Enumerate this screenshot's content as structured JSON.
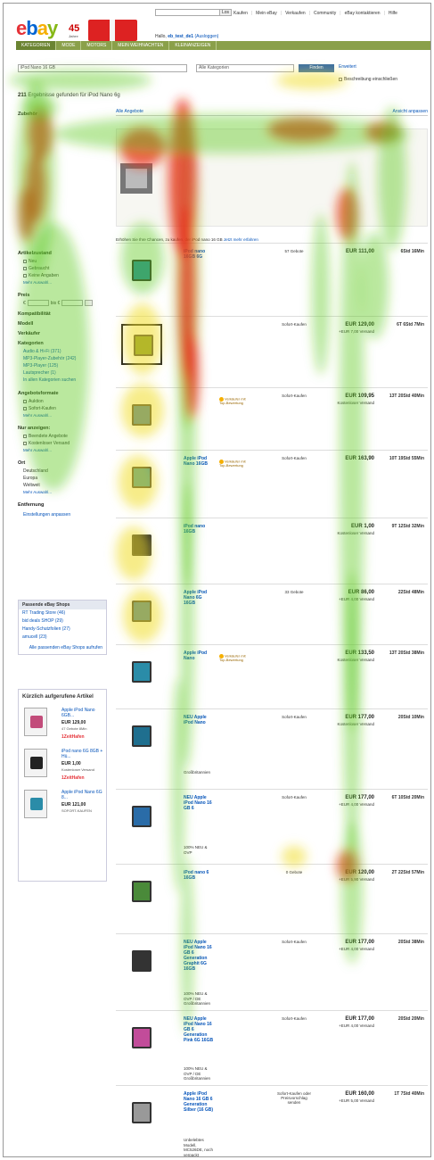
{
  "header": {
    "logo": {
      "e": "e",
      "b": "b",
      "a": "a",
      "y": "y"
    },
    "anniversary": "45",
    "anniversary_sub": "Jahre",
    "search_button": "Los",
    "top_links": [
      "Kaufen",
      "Mein eBay",
      "Verkaufen",
      "Community",
      "eBay kontaktieren",
      "Hilfe"
    ],
    "greeting_prefix": "Hallo,",
    "user": "eb_test_de1",
    "logout": "(Ausloggen)"
  },
  "nav_tabs": [
    "Kategorien",
    "Mode",
    "Motors",
    "Mein Weihnachten",
    "Kleinanzeigen"
  ],
  "search": {
    "query": "iPod Nano 16 GB",
    "category": "Alle Kategorien",
    "button": "Finden",
    "advanced": "Erweitert",
    "include_description": "Beschreibung einschließen"
  },
  "results_count": {
    "num": "211",
    "text": "Ergebnisse gefunden für iPod Nano 6g"
  },
  "results_header": {
    "left": "Alle Angebote",
    "right": "Ansicht anpassen"
  },
  "sidebar": {
    "category_title": "Zubehör",
    "condition_title": "Artikelzustand",
    "condition_items": [
      "Neu",
      "Gebraucht",
      "Keine Angaben"
    ],
    "more": "Mehr Auswahl...",
    "price_title": "Preis",
    "price_from": "€",
    "price_to": "bis €",
    "compat_title": "Kompatibilität",
    "model_title": "Modell",
    "seller_title": "Verkäufer",
    "categories_title": "Kategorien",
    "categories": [
      "Audio & Hi-Fi (371)",
      "MP3-Player-Zubehör (242)",
      "MP3-Player (125)",
      "Lautsprecher (1)"
    ],
    "categories_all": "In allen Kategorien suchen",
    "format_title": "Angebotsformate",
    "format_items": [
      "Auktion",
      "Sofort-Kaufen"
    ],
    "show_title": "Nur anzeigen:",
    "show_items": [
      "Beendete Angebote",
      "Kostenloser Versand"
    ],
    "location_title": "Ort",
    "location_items": [
      "Deutschland",
      "Europa",
      "Weltweit"
    ],
    "distance_title": "Entfernung",
    "settings": "Einstellungen anpassen"
  },
  "shops": {
    "title": "Passende eBay Shops",
    "items": [
      "RT Trading Store (46)",
      "bid deals SHOP (29)",
      "Handy-Schutzfolien (27)",
      "amucell (23)"
    ],
    "all": "Alle passenden eBay Shops aufrufen"
  },
  "recent": {
    "title": "Kürzlich aufgerufene Artikel",
    "items": [
      {
        "name": "Apple iPod Nano 6GB...",
        "price": "EUR 129,00",
        "sub": "47 Gebote 8Min",
        "shop": "1ZeitHafen",
        "color": "#c24c7a"
      },
      {
        "name": "iPod nano 6G 8GB + Hü...",
        "price": "EUR 1,00",
        "sub": "Kostenloser Versand",
        "shop": "1ZeitHafen",
        "color": "#222222"
      },
      {
        "name": "Apple iPod Nano 6G 8...",
        "price": "EUR 121,00",
        "sub": "SOFORT-KAUFEN",
        "shop": "",
        "color": "#2a8ca8"
      }
    ]
  },
  "hint": {
    "text": "Erhöhen Sie Ihre Chancen, zu kaufen, der iPod nano 16 GB",
    "link": "Jetzt mehr erfahren"
  },
  "listings": [
    {
      "title": "iPod nano 16GB 6G",
      "extra": "",
      "badge": "",
      "format": "57 Gebote",
      "price": "EUR 111,00",
      "ship": "",
      "time": "6Std 16Min",
      "img": "#2a8ca8",
      "boxed": false
    },
    {
      "title": "",
      "extra": "",
      "badge": "",
      "format": "Sofort-Kaufen",
      "price": "EUR 129,00",
      "ship": "+EUR 7,00 Versand",
      "time": "6T 6Std 7Min",
      "img": "#6a8a2a",
      "boxed": true
    },
    {
      "title": "",
      "extra": "",
      "badge": "Verkäufer mit Top-Bewertung",
      "format": "Sofort-Kaufen",
      "price": "EUR 109,95",
      "ship": "Kostenloser Versand",
      "time": "13T 20Std 40Min",
      "img": "#2a6ca8",
      "boxed": false
    },
    {
      "title": "Apple iPod Nano 16GB",
      "extra": "",
      "badge": "Verkäufer mit Top-Bewertung",
      "format": "Sofort-Kaufen",
      "price": "EUR 163,90",
      "ship": "",
      "time": "10T 19Std 55Min",
      "img": "#2a8ca8",
      "boxed": false
    },
    {
      "title": "iPod nano 16GB",
      "extra": "",
      "badge": "",
      "format": "",
      "price": "EUR 1,00",
      "ship": "Kostenloser Versand",
      "time": "9T 12Std 32Min",
      "img": "#2a2a2a",
      "boxed": false
    },
    {
      "title": "Apple iPod Nano 6G 16GB",
      "extra": "",
      "badge": "",
      "format": "33 Gebote",
      "price": "EUR 86,00",
      "ship": "+EUR 4,00 Versand",
      "time": "22Std 48Min",
      "img": "#2a6ca8",
      "boxed": false
    },
    {
      "title": "Apple iPod Nano",
      "extra": "",
      "badge": "Verkäufer mit Top-Bewertung",
      "format": "",
      "price": "EUR 133,50",
      "ship": "Kostenloser Versand",
      "time": "13T 20Std 38Min",
      "img": "#2a8ca8",
      "boxed": false
    },
    {
      "title": "NEU Apple iPod Nano",
      "extra": "Großbritannien",
      "badge": "",
      "format": "Sofort-Kaufen",
      "price": "EUR 177,00",
      "ship": "Kostenloser Versand",
      "time": "20Std 10Min",
      "img": "#1f6f8f",
      "boxed": false
    },
    {
      "title": "NEU Apple iPod Nano 16 GB 6",
      "extra": "100% NEU & OVP",
      "badge": "",
      "format": "Sofort-Kaufen",
      "price": "EUR 177,00",
      "ship": "+EUR 4,00 Versand",
      "time": "6T 10Std 20Min",
      "img": "#2a6ca8",
      "boxed": false
    },
    {
      "title": "iPod nano 6 16GB",
      "extra": "",
      "badge": "",
      "format": "0 Gebote",
      "price": "EUR 120,00",
      "ship": "+EUR 5,90 Versand",
      "time": "2T 22Std 57Min",
      "img": "#4a8a3a",
      "boxed": false
    },
    {
      "title": "NEU Apple iPod Nano 16 GB 6 Generation Graphit 6G 16GB",
      "extra": "100% NEU & OVP / DE Großbritannien",
      "badge": "",
      "format": "Sofort-Kaufen",
      "price": "EUR 177,00",
      "ship": "+EUR 4,00 Versand",
      "time": "20Std 38Min",
      "img": "#333333",
      "boxed": false
    },
    {
      "title": "NEU Apple iPod Nano 16 GB 6 Generation Pink 6G 16GB",
      "extra": "100% NEU & OVP / DE Großbritannien",
      "badge": "",
      "format": "Sofort-Kaufen",
      "price": "EUR 177,00",
      "ship": "+EUR 4,00 Versand",
      "time": "20Std 20Min",
      "img": "#c24c9a",
      "boxed": false
    },
    {
      "title": "Apple iPod Nano 16 GB 6 Generation Silber (16 GB)",
      "extra": "Unbelebtes Modell, MC526DE, noch verpackt",
      "badge": "",
      "format": "Sofort-Kaufen oder Preisvorschlag senden",
      "price": "EUR 160,00",
      "ship": "+EUR 5,00 Versand",
      "time": "1T 7Std 40Min",
      "img": "#999999",
      "boxed": false
    }
  ]
}
